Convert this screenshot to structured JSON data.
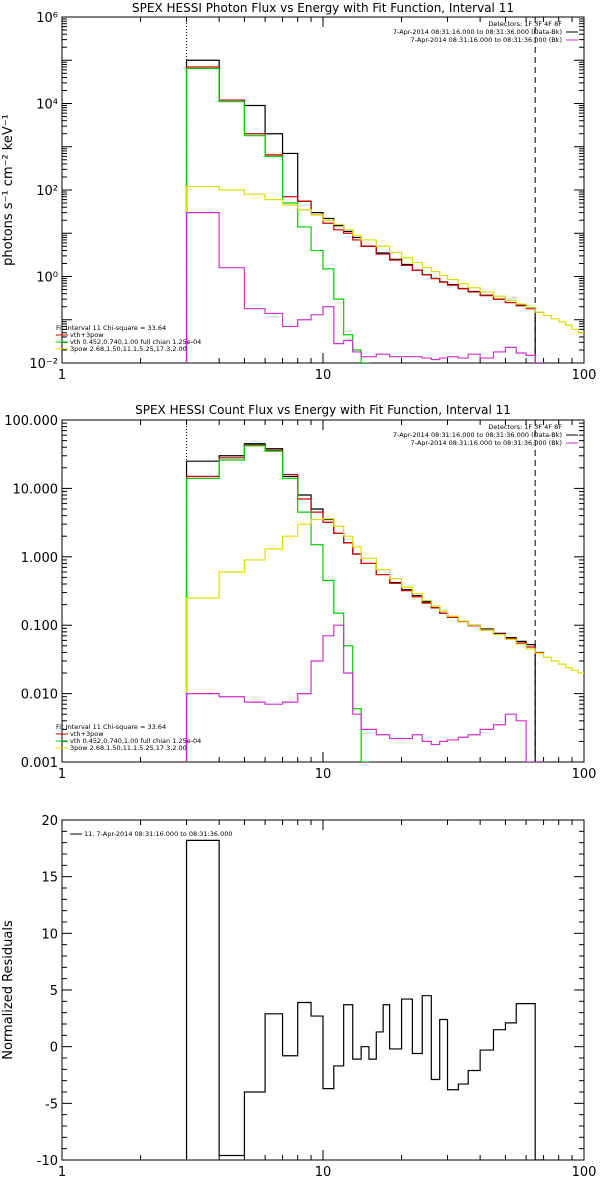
{
  "chart_data": [
    {
      "type": "line",
      "title": "SPEX HESSI Photon Flux vs Energy with Fit Function, Interval 11",
      "xlabel": "",
      "ylabel": "photons s⁻¹ cm⁻² keV⁻¹",
      "xscale": "log",
      "yscale": "log",
      "xlim": [
        1,
        100
      ],
      "ylim": [
        0.01,
        1000000
      ],
      "x_ticks": [
        1,
        10,
        100
      ],
      "x_tick_labels": [
        "1",
        "10",
        "100"
      ],
      "y_ticks": [
        0.01,
        1,
        100,
        10000,
        1000000
      ],
      "y_tick_labels": [
        "10⁻²",
        "10⁰",
        "10²",
        "10⁴",
        "10⁶"
      ],
      "vlines": [
        {
          "x": 3,
          "style": "dotted"
        },
        {
          "x": 65,
          "style": "dashed"
        }
      ],
      "legend_right": [
        "Detectors: 1F 3F 4F 8F",
        "7-Apr-2014 08:31:16.000 to 08:31:36.000 (Data-Bk)",
        "7-Apr-2014 08:31:16.000 to 08:31:36.000 (Bk)"
      ],
      "legend_right_colors": [
        "#000000",
        "#cc33cc"
      ],
      "legend_left": [
        "Fit Interval 11     Chi-square = 33.64",
        "vth+3pow",
        "vth 0.452,0.740,1.00  full chian 1.25e-04",
        "3pow 2.68,1.50,11.1,5.25,17.3,2.00"
      ],
      "legend_left_colors": [
        "#000000",
        "#cc0000",
        "#00cc00",
        "#dddd00"
      ],
      "series": [
        {
          "color": "#000000",
          "x": [
            3,
            4,
            5,
            6,
            7,
            8,
            9,
            10,
            11,
            12,
            13,
            14,
            16,
            18,
            20,
            22,
            24,
            26,
            28,
            30,
            33,
            36,
            40,
            45,
            50,
            55,
            60,
            65
          ],
          "y": [
            100000,
            12000,
            9000,
            2000,
            700,
            55,
            30,
            22,
            15,
            11,
            8,
            5,
            3.5,
            2.5,
            1.9,
            1.4,
            1.1,
            0.9,
            0.75,
            0.65,
            0.53,
            0.45,
            0.37,
            0.3,
            0.25,
            0.22,
            0.19,
            0.01
          ]
        },
        {
          "color": "#cc0000",
          "x": [
            3,
            4,
            5,
            6,
            7,
            8,
            9,
            10,
            11,
            12,
            13,
            14,
            16,
            18,
            20,
            22,
            24,
            26,
            28,
            30,
            33,
            36,
            40,
            45,
            50,
            55,
            60,
            65
          ],
          "y": [
            70000,
            12000,
            2000,
            650,
            70,
            55,
            27,
            17,
            12,
            10,
            7,
            5,
            3.3,
            2.4,
            1.8,
            1.4,
            1.1,
            0.9,
            0.74,
            0.63,
            0.52,
            0.44,
            0.36,
            0.3,
            0.25,
            0.21,
            0.18,
            0.15
          ]
        },
        {
          "color": "#00cc00",
          "x": [
            3,
            4,
            5,
            6,
            7,
            8,
            9,
            10,
            11,
            12,
            13,
            14
          ],
          "y": [
            65000,
            11000,
            1800,
            600,
            50,
            14,
            4,
            1.5,
            0.3,
            0.045,
            0.02,
            0.01
          ]
        },
        {
          "color": "#dddd00",
          "x": [
            3,
            4,
            5,
            6,
            7,
            8,
            9,
            10,
            11,
            12,
            13,
            14,
            16,
            18,
            20,
            22,
            24,
            26,
            28,
            30,
            33,
            36,
            40,
            45,
            50,
            55,
            60,
            65,
            70,
            75,
            80,
            85,
            90,
            95
          ],
          "y": [
            120,
            100,
            80,
            60,
            45,
            35,
            27,
            20,
            16,
            12,
            9,
            7,
            5,
            3.6,
            2.7,
            2.1,
            1.6,
            1.3,
            1.05,
            0.85,
            0.68,
            0.55,
            0.44,
            0.35,
            0.28,
            0.23,
            0.19,
            0.15,
            0.125,
            0.105,
            0.09,
            0.075,
            0.06,
            0.05
          ]
        },
        {
          "color": "#cc33cc",
          "x": [
            3,
            4,
            5,
            6,
            7,
            8,
            9,
            10,
            11,
            12,
            13,
            14,
            16,
            18,
            20,
            22,
            24,
            26,
            28,
            30,
            33,
            36,
            40,
            45,
            50,
            55,
            60,
            65
          ],
          "y": [
            30,
            1.6,
            0.18,
            0.14,
            0.07,
            0.1,
            0.13,
            0.2,
            0.028,
            0.033,
            0.018,
            0.014,
            0.016,
            0.014,
            0.014,
            0.014,
            0.013,
            0.012,
            0.013,
            0.014,
            0.013,
            0.016,
            0.013,
            0.018,
            0.023,
            0.017,
            0.015,
            0.01
          ]
        }
      ]
    },
    {
      "type": "line",
      "title": "SPEX HESSI Count Flux vs Energy with Fit Function, Interval 11",
      "xlabel": "",
      "ylabel": "",
      "xscale": "log",
      "yscale": "log",
      "xlim": [
        1,
        100
      ],
      "ylim": [
        0.001,
        100
      ],
      "x_ticks": [
        1,
        10,
        100
      ],
      "x_tick_labels": [
        "1",
        "10",
        "100"
      ],
      "y_ticks": [
        0.001,
        0.01,
        0.1,
        1,
        10,
        100
      ],
      "y_tick_labels": [
        "0.001",
        "0.010",
        "0.100",
        "1.000",
        "10.000",
        "100.000"
      ],
      "vlines": [
        {
          "x": 3,
          "style": "dotted"
        },
        {
          "x": 65,
          "style": "dashed"
        }
      ],
      "legend_right": [
        "Detectors: 1F 3F 4F 8F",
        "7-Apr-2014 08:31:16.000 to 08:31:36.000 (Data-Bk)",
        "7-Apr-2014 08:31:16.000 to 08:31:36.000 (Bk)"
      ],
      "legend_right_colors": [
        "#000000",
        "#cc33cc"
      ],
      "legend_left": [
        "Fit Interval 11     Chi-square = 33.64",
        "vth+3pow",
        "vth 0.452,0.740,1.00  full chian 1.25e-04",
        "3pow 2.68,1.50,11.1,5.25,17.3,2.00"
      ],
      "legend_left_colors": [
        "#000000",
        "#cc0000",
        "#00cc00",
        "#dddd00"
      ],
      "series": [
        {
          "color": "#000000",
          "x": [
            3,
            4,
            5,
            6,
            7,
            8,
            9,
            10,
            11,
            12,
            13,
            14,
            16,
            18,
            20,
            22,
            24,
            26,
            28,
            30,
            33,
            36,
            40,
            45,
            50,
            55,
            60,
            65
          ],
          "y": [
            25,
            30,
            45,
            38,
            15,
            8,
            5,
            3.5,
            2.2,
            1.6,
            1.1,
            0.8,
            0.55,
            0.42,
            0.33,
            0.27,
            0.22,
            0.18,
            0.15,
            0.13,
            0.115,
            0.1,
            0.088,
            0.076,
            0.066,
            0.058,
            0.052,
            0.001
          ]
        },
        {
          "color": "#cc0000",
          "x": [
            3,
            4,
            5,
            6,
            7,
            8,
            9,
            10,
            11,
            12,
            13,
            14,
            16,
            18,
            20,
            22,
            24,
            26,
            28,
            30,
            33,
            36,
            40,
            45,
            50,
            55,
            60,
            65
          ],
          "y": [
            15,
            28,
            43,
            36,
            16,
            7,
            4.5,
            3.2,
            2.2,
            1.6,
            1.1,
            0.8,
            0.55,
            0.41,
            0.32,
            0.26,
            0.21,
            0.18,
            0.15,
            0.13,
            0.113,
            0.098,
            0.085,
            0.074,
            0.064,
            0.055,
            0.048,
            0.04
          ]
        },
        {
          "color": "#00cc00",
          "x": [
            3,
            4,
            5,
            6,
            7,
            8,
            9,
            10,
            11,
            12,
            13,
            14
          ],
          "y": [
            14,
            26,
            42,
            35,
            14,
            4.5,
            1.5,
            0.45,
            0.15,
            0.05,
            0.006,
            0.001
          ]
        },
        {
          "color": "#dddd00",
          "x": [
            3,
            4,
            5,
            6,
            7,
            8,
            9,
            10,
            11,
            12,
            13,
            14,
            16,
            18,
            20,
            22,
            24,
            26,
            28,
            30,
            33,
            36,
            40,
            45,
            50,
            55,
            60,
            65,
            70,
            75,
            80,
            85,
            90,
            95
          ],
          "y": [
            0.25,
            0.6,
            0.9,
            1.3,
            2,
            3,
            3.5,
            3.6,
            2.8,
            2,
            1.4,
            0.95,
            0.65,
            0.48,
            0.36,
            0.29,
            0.23,
            0.19,
            0.16,
            0.135,
            0.115,
            0.1,
            0.085,
            0.073,
            0.062,
            0.053,
            0.045,
            0.039,
            0.034,
            0.03,
            0.027,
            0.024,
            0.022,
            0.02
          ]
        },
        {
          "color": "#cc33cc",
          "x": [
            3,
            4,
            5,
            6,
            7,
            8,
            9,
            10,
            11,
            12,
            13,
            14,
            16,
            18,
            20,
            22,
            24,
            26,
            28,
            30,
            33,
            36,
            40,
            45,
            50,
            55,
            60,
            65
          ],
          "y": [
            0.01,
            0.009,
            0.0075,
            0.007,
            0.0075,
            0.01,
            0.03,
            0.07,
            0.1,
            0.02,
            0.005,
            0.003,
            0.0025,
            0.0022,
            0.0022,
            0.0025,
            0.002,
            0.0018,
            0.002,
            0.0021,
            0.0023,
            0.0025,
            0.003,
            0.0035,
            0.005,
            0.004,
            0.001,
            0.001
          ]
        }
      ]
    },
    {
      "type": "line",
      "title": "",
      "xlabel": "",
      "ylabel": "Normalized Residuals",
      "xscale": "log",
      "yscale": "linear",
      "xlim": [
        1,
        100
      ],
      "ylim": [
        -10,
        20
      ],
      "x_ticks": [
        1,
        10,
        100
      ],
      "x_tick_labels": [
        "1",
        "10",
        "100"
      ],
      "y_ticks": [
        -10,
        -5,
        0,
        5,
        10,
        15,
        20
      ],
      "y_tick_labels": [
        "-10",
        "-5",
        "0",
        "5",
        "10",
        "15",
        "20"
      ],
      "legend_right": [],
      "legend_right_colors": [],
      "legend_left": [
        "11.  7-Apr-2014 08:31:16.000 to 08:31:36.000"
      ],
      "legend_left_colors": [
        "#000000"
      ],
      "series": [
        {
          "color": "#000000",
          "x": [
            3,
            4,
            5,
            6,
            7,
            8,
            9,
            10,
            11,
            12,
            13,
            14,
            15,
            16,
            17,
            18,
            20,
            22,
            24,
            26,
            28,
            30,
            33,
            36,
            40,
            45,
            50,
            55,
            60,
            65
          ],
          "y": [
            18.2,
            -9.6,
            -4,
            2.9,
            -0.8,
            3.9,
            2.7,
            -3.7,
            -1.7,
            3.7,
            -1.1,
            0,
            -1.1,
            1.3,
            3.7,
            -0.2,
            4.2,
            -0.6,
            4.5,
            -2.9,
            2.4,
            -3.8,
            -3.3,
            -2.1,
            -0.3,
            1.5,
            2.1,
            3.8,
            3.8,
            -10
          ]
        }
      ]
    }
  ]
}
